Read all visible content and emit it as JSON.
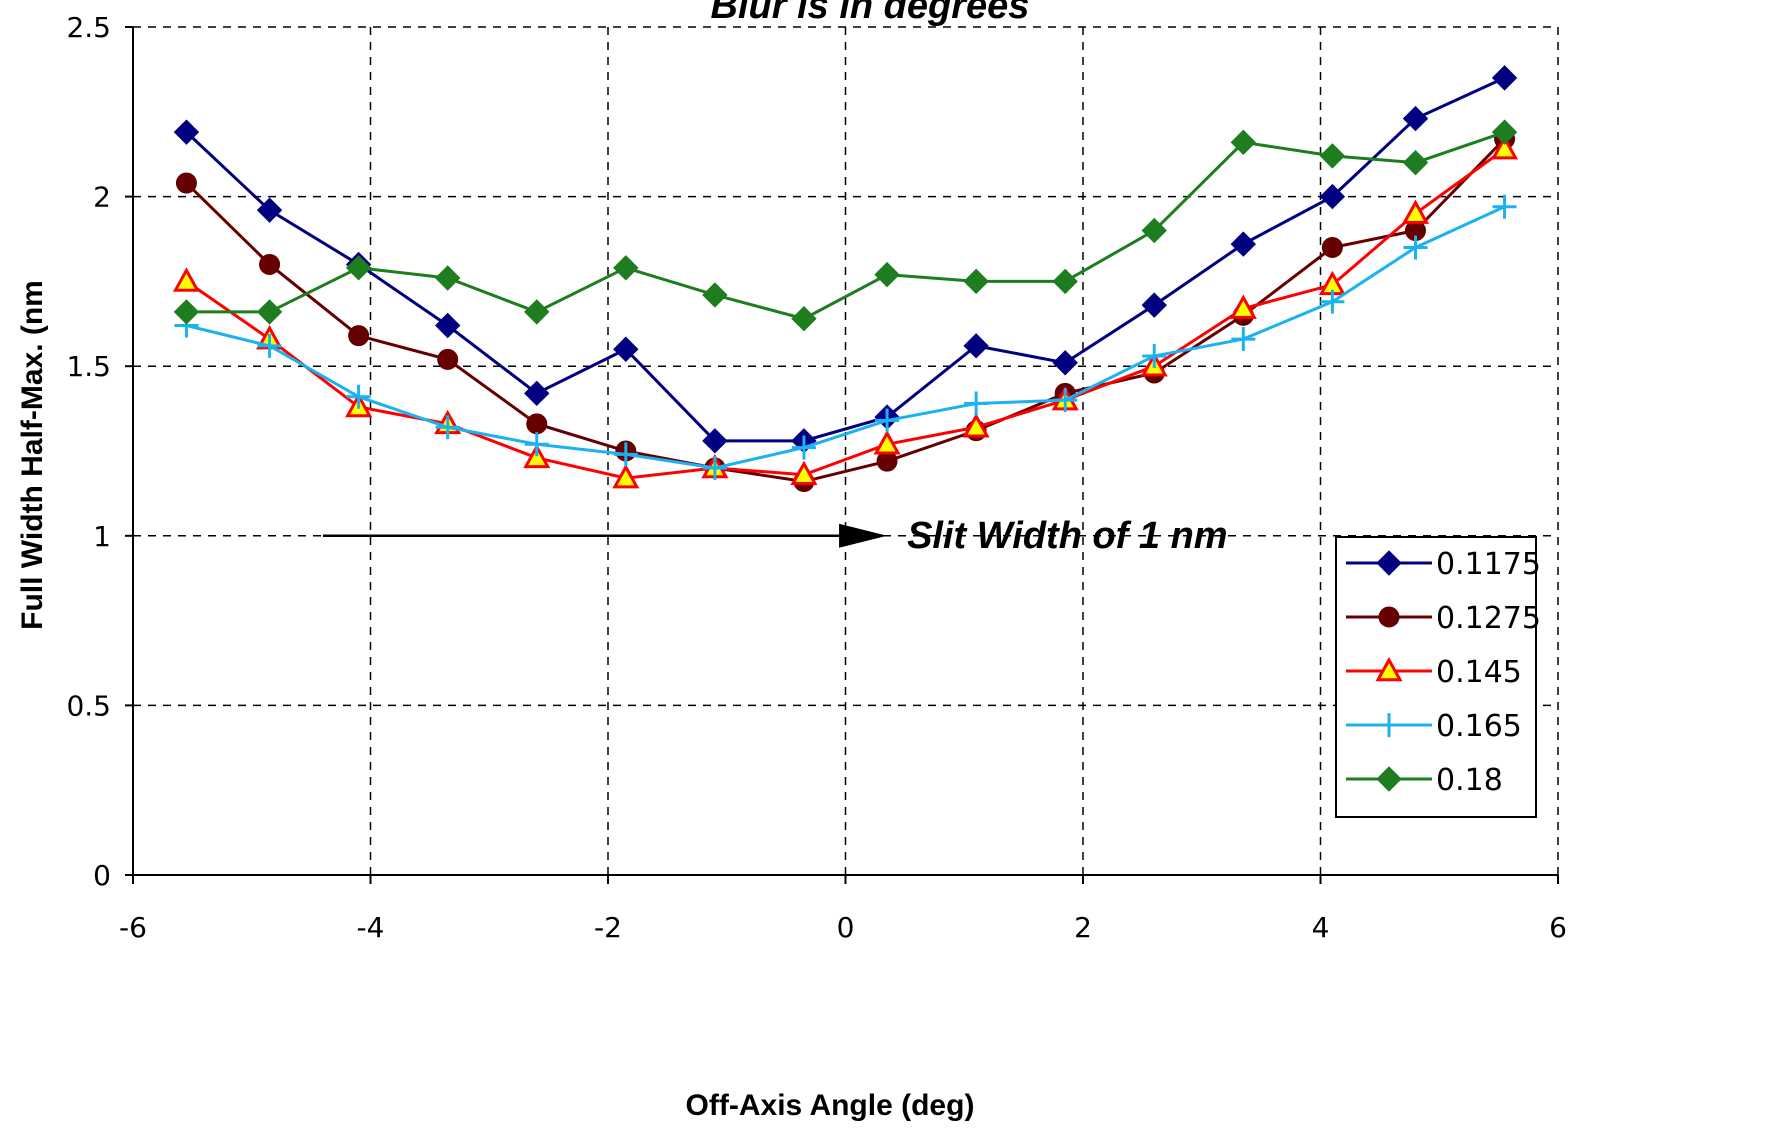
{
  "chart_data": {
    "type": "line",
    "title": "Blur is in degrees",
    "xlabel": "Off-Axis Angle (deg)",
    "ylabel": "Full Width Half-Max. (nm",
    "xlim": [
      -6,
      6
    ],
    "ylim": [
      0,
      2.5
    ],
    "xticks": [
      -6,
      -4,
      -2,
      0,
      2,
      4,
      6
    ],
    "yticks": [
      0,
      0.5,
      1,
      1.5,
      2,
      2.5
    ],
    "xtick_labels": [
      "-6",
      "-4",
      "-2",
      "0",
      "2",
      "4",
      "6"
    ],
    "ytick_labels": [
      "0",
      "0.5",
      "1",
      "1.5",
      "2",
      "2.5"
    ],
    "grid": true,
    "legend_position": "lower-right",
    "x": [
      -5.55,
      -4.85,
      -4.1,
      -3.35,
      -2.6,
      -1.85,
      -1.1,
      -0.35,
      0.35,
      1.1,
      1.85,
      2.6,
      3.35,
      4.1,
      4.8,
      5.55
    ],
    "series": [
      {
        "name": "0.1175",
        "color": "#000080",
        "marker": "diamond",
        "values": [
          2.19,
          1.96,
          1.8,
          1.62,
          1.42,
          1.55,
          1.28,
          1.28,
          1.35,
          1.56,
          1.51,
          1.68,
          1.86,
          2.0,
          2.23,
          2.35
        ]
      },
      {
        "name": "0.1275",
        "color": "#660000",
        "marker": "circle",
        "values": [
          2.04,
          1.8,
          1.59,
          1.52,
          1.33,
          1.25,
          1.2,
          1.16,
          1.22,
          1.31,
          1.42,
          1.48,
          1.65,
          1.85,
          1.9,
          2.17
        ]
      },
      {
        "name": "0.145",
        "color": "#ff0000",
        "marker": "triangle",
        "values": [
          1.75,
          1.58,
          1.38,
          1.33,
          1.23,
          1.17,
          1.2,
          1.18,
          1.27,
          1.32,
          1.4,
          1.5,
          1.67,
          1.74,
          1.95,
          2.14
        ]
      },
      {
        "name": "0.165",
        "color": "#1ab2f0",
        "marker": "plus",
        "values": [
          1.62,
          1.56,
          1.41,
          1.32,
          1.27,
          1.24,
          1.2,
          1.26,
          1.34,
          1.39,
          1.4,
          1.53,
          1.58,
          1.69,
          1.85,
          1.97
        ]
      },
      {
        "name": "0.18",
        "color": "#1e7d1e",
        "marker": "diamond",
        "values": [
          1.66,
          1.66,
          1.79,
          1.76,
          1.66,
          1.79,
          1.71,
          1.64,
          1.77,
          1.75,
          1.75,
          1.9,
          2.16,
          2.12,
          2.1,
          2.19
        ]
      }
    ],
    "annotation": {
      "text": "Slit Width of 1 nm",
      "arrow_from": [
        -4.4,
        1.0
      ],
      "arrow_to": [
        0.35,
        1.0
      ]
    }
  }
}
